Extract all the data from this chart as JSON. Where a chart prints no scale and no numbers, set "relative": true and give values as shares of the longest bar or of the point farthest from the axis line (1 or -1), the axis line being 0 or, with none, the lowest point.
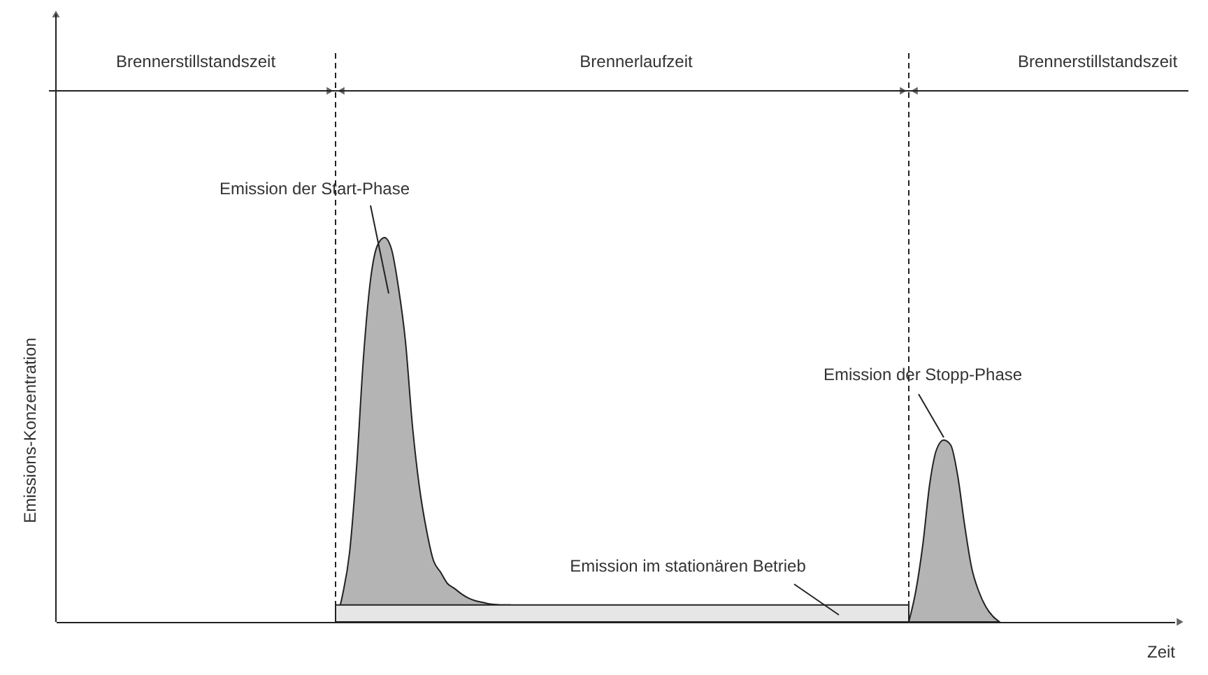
{
  "chart_data": {
    "type": "area",
    "relative": true,
    "xlabel": "Zeit",
    "ylabel": "Emissions-Konzentration",
    "categories": [
      null,
      null,
      null,
      null,
      null,
      null,
      null,
      null,
      null,
      null,
      null,
      null,
      null,
      null,
      null,
      null,
      null,
      null,
      null,
      null,
      null,
      null,
      null,
      null,
      null,
      null,
      null,
      null,
      null,
      null,
      null,
      null,
      null,
      null,
      null,
      null,
      null,
      null,
      null,
      null,
      null,
      null,
      null,
      null,
      null,
      null,
      null,
      null,
      null,
      null,
      null,
      null,
      null,
      null,
      null,
      null,
      null,
      null,
      null,
      null,
      null,
      null,
      null,
      null,
      null,
      null,
      null,
      null,
      null,
      null,
      null,
      null,
      null,
      null,
      null,
      null,
      null,
      null,
      null,
      null,
      null,
      null,
      null,
      null,
      null,
      null,
      null,
      null,
      null,
      null,
      null,
      null,
      null,
      null,
      null,
      null,
      null,
      null,
      null,
      null,
      null,
      null,
      null,
      null,
      null,
      null,
      null,
      null,
      null,
      null,
      null,
      null,
      null,
      null,
      null,
      null,
      null,
      null,
      null,
      null,
      null,
      null,
      null,
      null,
      null,
      null,
      null,
      null,
      null,
      null,
      null,
      null,
      null,
      null,
      null,
      null,
      null,
      null,
      null,
      null,
      null,
      null,
      null,
      null,
      null,
      null,
      null,
      null,
      null,
      null,
      null,
      null,
      null,
      null,
      null,
      null,
      null,
      null,
      null,
      null,
      null
    ],
    "series": [
      {
        "color": "#b4b4b4",
        "values": [
          null,
          null,
          null,
          null,
          null,
          null,
          null,
          null,
          null,
          null,
          null,
          null,
          null,
          null,
          null,
          null,
          null,
          null,
          null,
          null,
          null,
          null,
          null,
          null,
          null,
          null,
          null,
          null,
          null,
          null,
          null,
          null,
          null,
          null,
          null,
          null,
          null,
          null,
          null,
          null,
          0,
          0.07,
          0.18,
          0.4,
          0.69,
          0.89,
          0.98,
          1,
          0.97,
          0.87,
          0.73,
          0.51,
          0.35,
          0.24,
          0.16,
          0.13,
          0.1,
          0.087,
          0.073,
          0.062,
          0.055,
          0.051,
          0.047,
          0.045,
          0.044,
          0.044,
          null,
          null,
          null,
          null,
          null,
          null,
          null,
          null,
          null,
          null,
          null,
          null,
          null,
          null,
          null,
          null,
          null,
          null,
          null,
          null,
          null,
          null,
          null,
          null,
          null,
          null,
          null,
          null,
          null,
          null,
          null,
          null,
          null,
          null,
          null,
          null,
          null,
          null,
          null,
          null,
          null,
          null,
          null,
          null,
          null,
          null,
          null,
          null,
          null,
          null,
          null,
          null,
          null,
          null,
          null,
          null,
          null,
          null,
          null,
          null,
          null,
          null,
          null,
          null,
          null,
          null,
          null,
          null,
          null,
          null,
          null,
          null,
          null,
          null,
          null,
          null,
          null,
          null,
          null,
          null,
          null,
          null,
          null,
          null,
          null,
          null,
          null,
          null,
          null,
          null,
          null,
          null,
          null,
          null,
          null
        ]
      },
      {
        "color": "#b4b4b4",
        "values": [
          null,
          null,
          null,
          null,
          null,
          null,
          null,
          null,
          null,
          null,
          null,
          null,
          null,
          null,
          null,
          null,
          null,
          null,
          null,
          null,
          null,
          null,
          null,
          null,
          null,
          null,
          null,
          null,
          null,
          null,
          null,
          null,
          null,
          null,
          null,
          null,
          null,
          null,
          null,
          null,
          null,
          null,
          null,
          null,
          null,
          null,
          null,
          null,
          null,
          null,
          null,
          null,
          null,
          null,
          null,
          null,
          null,
          null,
          null,
          null,
          null,
          null,
          null,
          null,
          null,
          null,
          null,
          null,
          null,
          null,
          null,
          null,
          null,
          null,
          null,
          null,
          null,
          null,
          null,
          null,
          null,
          null,
          null,
          null,
          null,
          null,
          null,
          null,
          null,
          null,
          null,
          null,
          null,
          null,
          null,
          null,
          null,
          null,
          null,
          null,
          null,
          null,
          null,
          null,
          null,
          null,
          null,
          null,
          null,
          null,
          null,
          null,
          null,
          null,
          null,
          null,
          null,
          null,
          null,
          null,
          null,
          null,
          0,
          0.08,
          0.2,
          0.36,
          0.45,
          0.473,
          0.46,
          0.38,
          0.25,
          0.14,
          0.08,
          0.04,
          0.015,
          0,
          null,
          null,
          null,
          null,
          null,
          null,
          null,
          null,
          null,
          null,
          null,
          null,
          null,
          null,
          null,
          null,
          null,
          null,
          null,
          null,
          null,
          null,
          null,
          null,
          null
        ]
      },
      {
        "color": "#e6e6e6",
        "values": [
          null,
          null,
          null,
          null,
          null,
          null,
          null,
          null,
          null,
          null,
          null,
          null,
          null,
          null,
          null,
          null,
          null,
          null,
          null,
          null,
          null,
          null,
          null,
          null,
          null,
          null,
          null,
          null,
          null,
          null,
          null,
          null,
          null,
          null,
          null,
          null,
          null,
          null,
          null,
          null,
          0.044,
          0.044,
          0.044,
          0.044,
          0.044,
          0.044,
          0.044,
          0.044,
          0.044,
          0.044,
          0.044,
          0.044,
          0.044,
          0.044,
          0.044,
          0.044,
          0.044,
          0.044,
          0.044,
          0.044,
          0.044,
          0.044,
          0.044,
          0.044,
          0.044,
          0.044,
          0.044,
          0.044,
          0.044,
          0.044,
          0.044,
          0.044,
          0.044,
          0.044,
          0.044,
          0.044,
          0.044,
          0.044,
          0.044,
          0.044,
          0.044,
          0.044,
          0.044,
          0.044,
          0.044,
          0.044,
          0.044,
          0.044,
          0.044,
          0.044,
          0.044,
          0.044,
          0.044,
          0.044,
          0.044,
          0.044,
          0.044,
          0.044,
          0.044,
          0.044,
          0.044,
          0.044,
          0.044,
          0.044,
          0.044,
          0.044,
          0.044,
          0.044,
          0.044,
          0.044,
          0.044,
          0.044,
          0.044,
          0.044,
          0.044,
          0.044,
          0.044,
          0.044,
          0.044,
          0.044,
          0.044,
          0.044,
          0.044,
          null,
          null,
          null,
          null,
          null,
          null,
          null,
          null,
          null,
          null,
          null,
          null,
          null,
          null,
          null,
          null,
          null,
          null,
          null,
          null,
          null,
          null,
          null,
          null,
          null,
          null,
          null,
          null,
          null,
          null,
          null,
          null,
          null,
          null,
          null,
          null,
          null,
          null
        ]
      }
    ],
    "annotations": [
      "Brennerstillstandszeit",
      "Brennerlaufzeit",
      "Brennerstillstandszeit",
      "Emission der Start-Phase",
      "Emission der Stopp-Phase",
      "Emission im stationären Betrieb"
    ]
  }
}
